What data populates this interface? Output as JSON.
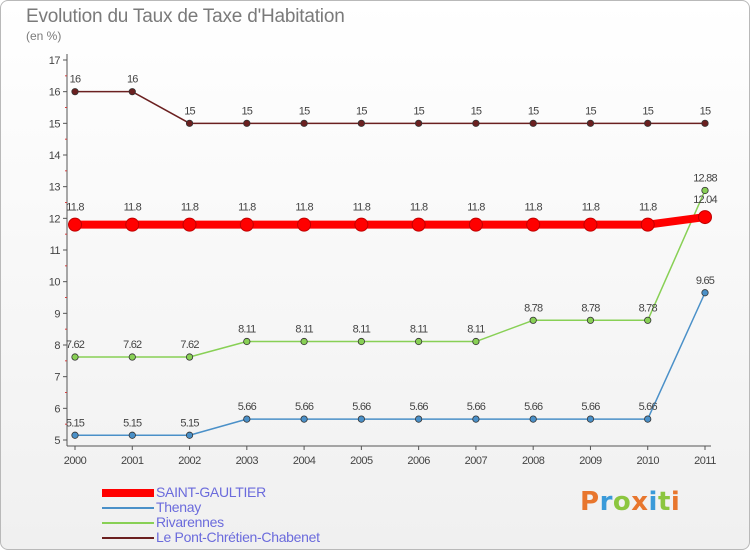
{
  "header": {
    "title": "Evolution du Taux de Taxe d'Habitation",
    "unit": "(en %)"
  },
  "logo": {
    "letters": [
      "P",
      "r",
      "o",
      "x",
      "i",
      "t",
      "i"
    ],
    "colors": [
      "#e8762d",
      "#3a9ad9",
      "#8cc63f",
      "#e8762d",
      "#3a9ad9",
      "#8cc63f",
      "#e8762d"
    ]
  },
  "chart_data": {
    "type": "line",
    "title": "Evolution du Taux de Taxe d'Habitation",
    "ylabel": "(en %)",
    "xlabel": "",
    "ylim": [
      5,
      17
    ],
    "y_ticks": [
      5,
      6,
      7,
      8,
      9,
      10,
      11,
      12,
      13,
      14,
      15,
      16,
      17
    ],
    "categories": [
      "2000",
      "2001",
      "2002",
      "2003",
      "2004",
      "2005",
      "2006",
      "2007",
      "2008",
      "2009",
      "2010",
      "2011"
    ],
    "grid": false,
    "legend_position": "bottom-left",
    "series": [
      {
        "name": "SAINT-GAULTIER",
        "color": "#ff0000",
        "values": [
          11.8,
          11.8,
          11.8,
          11.8,
          11.8,
          11.8,
          11.8,
          11.8,
          11.8,
          11.8,
          11.8,
          12.04
        ],
        "labels": [
          "11.8",
          "11.8",
          "11.8",
          "11.8",
          "11.8",
          "11.8",
          "11.8",
          "11.8",
          "11.8",
          "11.8",
          "11.8",
          "12.04"
        ]
      },
      {
        "name": "Thenay",
        "color": "#4a90c8",
        "values": [
          5.15,
          5.15,
          5.15,
          5.66,
          5.66,
          5.66,
          5.66,
          5.66,
          5.66,
          5.66,
          5.66,
          9.65
        ],
        "labels": [
          "5.15",
          "5.15",
          "5.15",
          "5.66",
          "5.66",
          "5.66",
          "5.66",
          "5.66",
          "5.66",
          "5.66",
          "5.66",
          "9.65"
        ]
      },
      {
        "name": "Rivarennes",
        "color": "#88d055",
        "values": [
          7.62,
          7.62,
          7.62,
          8.11,
          8.11,
          8.11,
          8.11,
          8.11,
          8.78,
          8.78,
          8.78,
          12.88
        ],
        "labels": [
          "7.62",
          "7.62",
          "7.62",
          "8.11",
          "8.11",
          "8.11",
          "8.11",
          "8.11",
          "8.78",
          "8.78",
          "8.78",
          "12.88"
        ]
      },
      {
        "name": "Le Pont-Chrétien-Chabenet",
        "color": "#6b2020",
        "values": [
          16,
          16,
          15,
          15,
          15,
          15,
          15,
          15,
          15,
          15,
          15,
          15
        ],
        "labels": [
          "16",
          "16",
          "15",
          "15",
          "15",
          "15",
          "15",
          "15",
          "15",
          "15",
          "15",
          "15"
        ]
      }
    ]
  }
}
